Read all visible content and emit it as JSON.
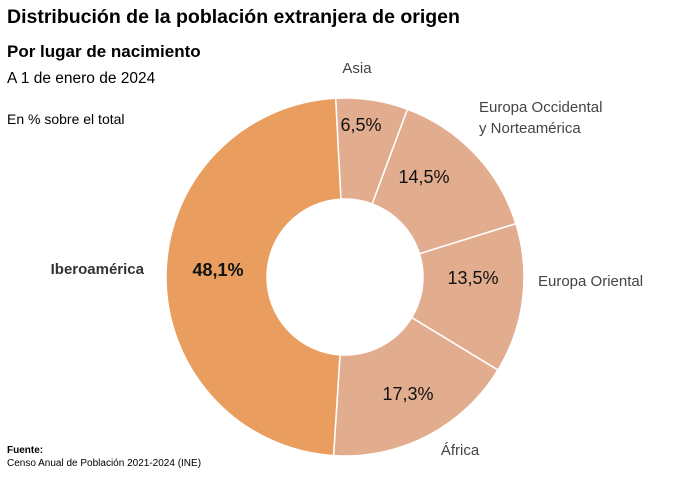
{
  "header": {
    "title": "Distribución de la población extranjera de origen",
    "subtitle": "Por lugar de nacimiento",
    "date": "A 1 de enero de 2024",
    "unit": "En % sobre el total"
  },
  "footer": {
    "source_label": "Fuente:",
    "source_text": "Censo Anual de Población 2021-2024 (INE)"
  },
  "colors": {
    "highlight": "#E99D5E",
    "secondary": "#E2AC8E",
    "separator": "#FFFFFF"
  },
  "chart_data": {
    "type": "pie",
    "donut": true,
    "title": "Distribución de la población extranjera de origen",
    "subtitle": "Por lugar de nacimiento",
    "unit": "%",
    "categories": [
      "Asia",
      "Europa Occidental y Norteamérica",
      "Europa Oriental",
      "África",
      "Iberoamérica"
    ],
    "category_lines": [
      [
        "Asia"
      ],
      [
        "Europa Occidental",
        "y Norteamérica"
      ],
      [
        "Europa Oriental"
      ],
      [
        "África"
      ],
      [
        "Iberoamérica"
      ]
    ],
    "values": [
      6.5,
      14.5,
      13.5,
      17.3,
      48.1
    ],
    "value_labels": [
      "6,5%",
      "14,5%",
      "13,5%",
      "17,3%",
      "48,1%"
    ],
    "highlighted": "Iberoamérica"
  }
}
